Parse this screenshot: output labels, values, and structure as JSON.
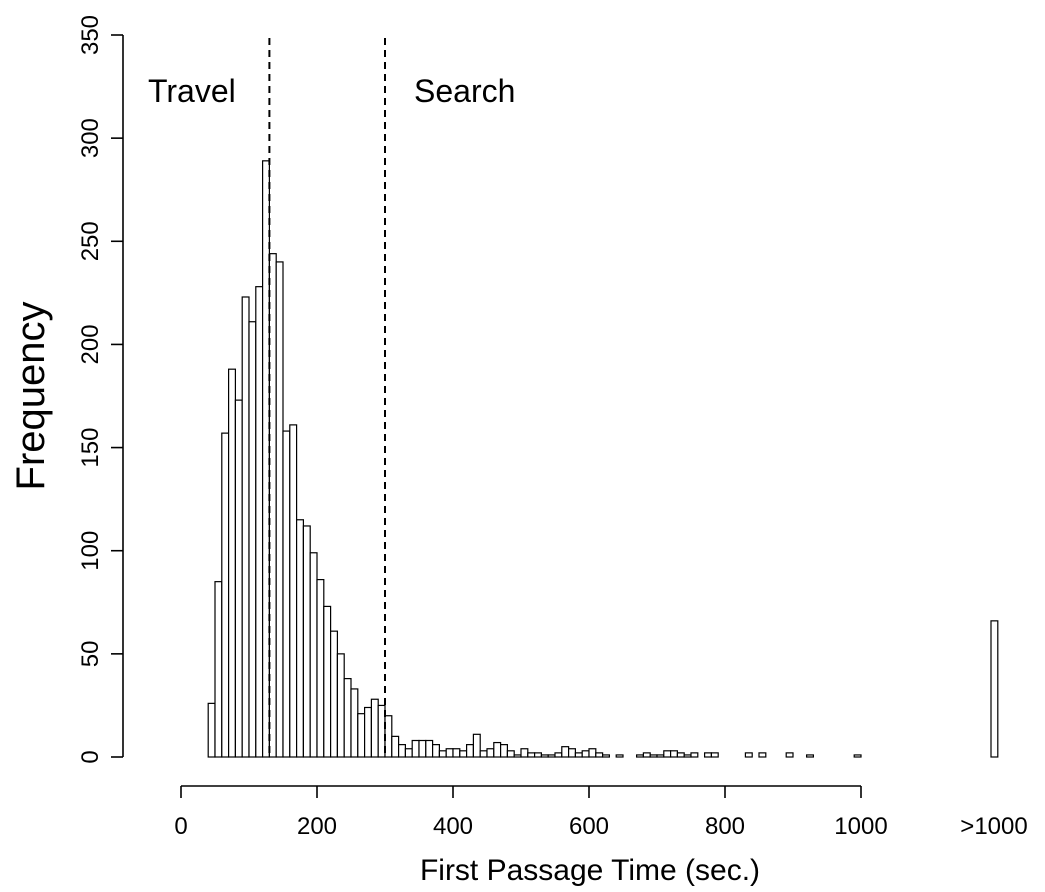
{
  "chart_data": {
    "type": "bar",
    "xlabel": "First Passage Time (sec.)",
    "ylabel": "Frequency",
    "xlim": [
      0,
      1200
    ],
    "ylim": [
      0,
      350
    ],
    "bin_width": 10,
    "x_tick_values": [
      0,
      200,
      400,
      600,
      800,
      1000
    ],
    "x_tick_labels": [
      "0",
      "200",
      "400",
      "600",
      "800",
      "1000"
    ],
    "overflow_tick_label": ">1000",
    "y_ticks": [
      0,
      50,
      100,
      150,
      200,
      250,
      300,
      350
    ],
    "bins": [
      {
        "x0": 40,
        "value": 26
      },
      {
        "x0": 50,
        "value": 85
      },
      {
        "x0": 60,
        "value": 157
      },
      {
        "x0": 70,
        "value": 188
      },
      {
        "x0": 80,
        "value": 173
      },
      {
        "x0": 90,
        "value": 223
      },
      {
        "x0": 100,
        "value": 211
      },
      {
        "x0": 110,
        "value": 228
      },
      {
        "x0": 120,
        "value": 289
      },
      {
        "x0": 130,
        "value": 244
      },
      {
        "x0": 140,
        "value": 240
      },
      {
        "x0": 150,
        "value": 158
      },
      {
        "x0": 160,
        "value": 161
      },
      {
        "x0": 170,
        "value": 115
      },
      {
        "x0": 180,
        "value": 112
      },
      {
        "x0": 190,
        "value": 99
      },
      {
        "x0": 200,
        "value": 86
      },
      {
        "x0": 210,
        "value": 73
      },
      {
        "x0": 220,
        "value": 61
      },
      {
        "x0": 230,
        "value": 50
      },
      {
        "x0": 240,
        "value": 38
      },
      {
        "x0": 250,
        "value": 33
      },
      {
        "x0": 260,
        "value": 21
      },
      {
        "x0": 270,
        "value": 24
      },
      {
        "x0": 280,
        "value": 28
      },
      {
        "x0": 290,
        "value": 25
      },
      {
        "x0": 300,
        "value": 20
      },
      {
        "x0": 310,
        "value": 10
      },
      {
        "x0": 320,
        "value": 6
      },
      {
        "x0": 330,
        "value": 4
      },
      {
        "x0": 340,
        "value": 8
      },
      {
        "x0": 350,
        "value": 8
      },
      {
        "x0": 360,
        "value": 8
      },
      {
        "x0": 370,
        "value": 6
      },
      {
        "x0": 380,
        "value": 3
      },
      {
        "x0": 390,
        "value": 4
      },
      {
        "x0": 400,
        "value": 4
      },
      {
        "x0": 410,
        "value": 3
      },
      {
        "x0": 420,
        "value": 6
      },
      {
        "x0": 430,
        "value": 11
      },
      {
        "x0": 440,
        "value": 3
      },
      {
        "x0": 450,
        "value": 4
      },
      {
        "x0": 460,
        "value": 7
      },
      {
        "x0": 470,
        "value": 6
      },
      {
        "x0": 480,
        "value": 3
      },
      {
        "x0": 490,
        "value": 1
      },
      {
        "x0": 500,
        "value": 4
      },
      {
        "x0": 510,
        "value": 2
      },
      {
        "x0": 520,
        "value": 2
      },
      {
        "x0": 530,
        "value": 1
      },
      {
        "x0": 540,
        "value": 1
      },
      {
        "x0": 550,
        "value": 2
      },
      {
        "x0": 560,
        "value": 5
      },
      {
        "x0": 570,
        "value": 4
      },
      {
        "x0": 580,
        "value": 2
      },
      {
        "x0": 590,
        "value": 3
      },
      {
        "x0": 600,
        "value": 4
      },
      {
        "x0": 610,
        "value": 2
      },
      {
        "x0": 620,
        "value": 1
      },
      {
        "x0": 640,
        "value": 1
      },
      {
        "x0": 670,
        "value": 1
      },
      {
        "x0": 680,
        "value": 2
      },
      {
        "x0": 690,
        "value": 1
      },
      {
        "x0": 700,
        "value": 1
      },
      {
        "x0": 710,
        "value": 3
      },
      {
        "x0": 720,
        "value": 3
      },
      {
        "x0": 730,
        "value": 2
      },
      {
        "x0": 740,
        "value": 1
      },
      {
        "x0": 750,
        "value": 2
      },
      {
        "x0": 770,
        "value": 2
      },
      {
        "x0": 780,
        "value": 2
      },
      {
        "x0": 830,
        "value": 2
      },
      {
        "x0": 850,
        "value": 2
      },
      {
        "x0": 890,
        "value": 2
      },
      {
        "x0": 920,
        "value": 1
      },
      {
        "x0": 990,
        "value": 1
      }
    ],
    "overflow_bin": {
      "label": ">1000",
      "value": 66
    },
    "reference_lines": [
      {
        "x": 130,
        "style": "dashed"
      },
      {
        "x": 300,
        "style": "dashed"
      }
    ],
    "annotations": [
      {
        "text": "Travel",
        "region": "left of first dashed line"
      },
      {
        "text": "Search",
        "region": "right of second dashed line"
      }
    ],
    "grid": false,
    "bar_fill": "#ffffff",
    "bar_stroke": "#000000"
  }
}
